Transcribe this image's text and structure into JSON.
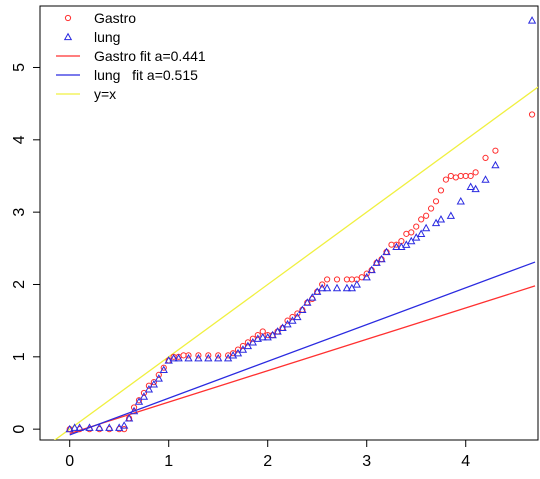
{
  "chart_data": {
    "type": "scatter",
    "title": "",
    "xlabel": "",
    "ylabel": "",
    "xlim": [
      -0.3,
      4.73
    ],
    "ylim": [
      -0.15,
      5.85
    ],
    "x_ticks": [
      0,
      1,
      2,
      3,
      4
    ],
    "y_ticks": [
      0,
      1,
      2,
      3,
      4,
      5
    ],
    "x_tick_labels": [
      "0",
      "1",
      "2",
      "3",
      "4"
    ],
    "y_tick_labels": [
      "0",
      "1",
      "2",
      "3",
      "4",
      "5"
    ],
    "legend_position": "top-left",
    "legend": [
      {
        "label": "Gastro",
        "symbol": "circle",
        "color": "#ff3030"
      },
      {
        "label": "lung",
        "symbol": "triangle",
        "color": "#2a2ae0"
      },
      {
        "label": "Gastro fit a=0.441",
        "symbol": "line",
        "color": "#ff3030"
      },
      {
        "label": "lung   fit a=0.515",
        "symbol": "line",
        "color": "#2a2ae0"
      },
      {
        "label": "y=x",
        "symbol": "line",
        "color": "#f0f040"
      }
    ],
    "series": [
      {
        "label": "Gastro",
        "kind": "points",
        "marker": "circle",
        "color": "#ff3030",
        "x": [
          0.0,
          0.1,
          0.2,
          0.3,
          0.4,
          0.5,
          0.55,
          0.6,
          0.65,
          0.7,
          0.75,
          0.8,
          0.85,
          0.9,
          0.95,
          1.0,
          1.05,
          1.1,
          1.15,
          1.2,
          1.3,
          1.4,
          1.5,
          1.6,
          1.65,
          1.7,
          1.75,
          1.8,
          1.85,
          1.9,
          1.95,
          2.0,
          2.05,
          2.1,
          2.15,
          2.2,
          2.25,
          2.3,
          2.35,
          2.4,
          2.45,
          2.5,
          2.55,
          2.6,
          2.7,
          2.8,
          2.85,
          2.9,
          2.95,
          3.0,
          3.05,
          3.1,
          3.15,
          3.2,
          3.25,
          3.3,
          3.35,
          3.4,
          3.45,
          3.5,
          3.55,
          3.6,
          3.65,
          3.7,
          3.75,
          3.8,
          3.85,
          3.9,
          3.95,
          4.0,
          4.05,
          4.1,
          4.2,
          4.3,
          4.67
        ],
        "y": [
          0.0,
          0.0,
          0.0,
          0.0,
          0.0,
          0.0,
          0.0,
          0.15,
          0.3,
          0.4,
          0.5,
          0.6,
          0.65,
          0.75,
          0.85,
          0.95,
          1.0,
          1.0,
          1.02,
          1.02,
          1.02,
          1.02,
          1.02,
          1.02,
          1.05,
          1.1,
          1.15,
          1.2,
          1.25,
          1.3,
          1.35,
          1.3,
          1.3,
          1.35,
          1.4,
          1.5,
          1.55,
          1.6,
          1.65,
          1.75,
          1.8,
          1.9,
          2.0,
          2.07,
          2.07,
          2.07,
          2.07,
          2.07,
          2.1,
          2.15,
          2.2,
          2.3,
          2.35,
          2.45,
          2.55,
          2.55,
          2.6,
          2.7,
          2.72,
          2.8,
          2.9,
          2.95,
          3.05,
          3.15,
          3.3,
          3.45,
          3.5,
          3.48,
          3.5,
          3.5,
          3.5,
          3.55,
          3.75,
          3.85,
          4.35
        ]
      },
      {
        "label": "lung",
        "kind": "points",
        "marker": "triangle",
        "color": "#2a2ae0",
        "x": [
          0.0,
          0.05,
          0.1,
          0.2,
          0.3,
          0.4,
          0.5,
          0.55,
          0.6,
          0.65,
          0.7,
          0.75,
          0.8,
          0.85,
          0.9,
          0.95,
          1.0,
          1.05,
          1.1,
          1.2,
          1.3,
          1.4,
          1.5,
          1.6,
          1.65,
          1.7,
          1.75,
          1.8,
          1.85,
          1.9,
          1.95,
          2.0,
          2.05,
          2.1,
          2.15,
          2.2,
          2.25,
          2.3,
          2.35,
          2.4,
          2.45,
          2.5,
          2.55,
          2.6,
          2.7,
          2.8,
          2.85,
          2.9,
          3.0,
          3.05,
          3.1,
          3.15,
          3.2,
          3.3,
          3.35,
          3.4,
          3.45,
          3.5,
          3.55,
          3.6,
          3.7,
          3.75,
          3.85,
          3.95,
          4.05,
          4.1,
          4.2,
          4.3,
          4.67
        ],
        "y": [
          0.0,
          0.02,
          0.02,
          0.02,
          0.02,
          0.02,
          0.02,
          0.05,
          0.15,
          0.25,
          0.38,
          0.45,
          0.55,
          0.62,
          0.7,
          0.82,
          0.95,
          0.98,
          0.98,
          0.98,
          0.98,
          0.98,
          0.98,
          0.98,
          1.02,
          1.05,
          1.1,
          1.15,
          1.2,
          1.25,
          1.27,
          1.27,
          1.3,
          1.35,
          1.4,
          1.45,
          1.5,
          1.55,
          1.65,
          1.75,
          1.82,
          1.9,
          1.95,
          1.95,
          1.95,
          1.95,
          1.95,
          2.0,
          2.1,
          2.2,
          2.3,
          2.35,
          2.45,
          2.52,
          2.52,
          2.55,
          2.6,
          2.65,
          2.7,
          2.78,
          2.85,
          2.9,
          2.95,
          3.15,
          3.35,
          3.32,
          3.45,
          3.65,
          5.65
        ]
      },
      {
        "label": "Gastro fit a=0.441",
        "kind": "line",
        "color": "#ff3030",
        "x": [
          0.0,
          4.7
        ],
        "y": [
          -0.06,
          1.98
        ]
      },
      {
        "label": "lung fit a=0.515",
        "kind": "line",
        "color": "#2a2ae0",
        "x": [
          0.0,
          4.7
        ],
        "y": [
          -0.08,
          2.31
        ]
      },
      {
        "label": "y=x",
        "kind": "line",
        "color": "#f0f040",
        "x": [
          -0.3,
          4.73
        ],
        "y": [
          -0.3,
          4.73
        ]
      }
    ]
  }
}
